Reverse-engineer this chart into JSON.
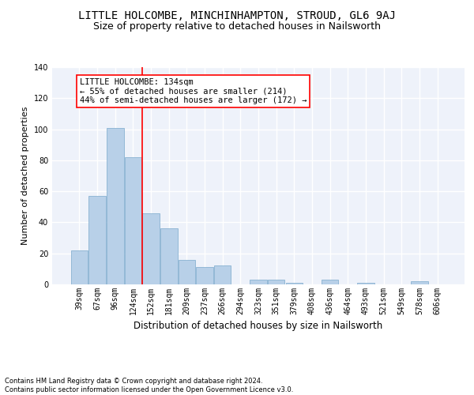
{
  "title": "LITTLE HOLCOMBE, MINCHINHAMPTON, STROUD, GL6 9AJ",
  "subtitle": "Size of property relative to detached houses in Nailsworth",
  "xlabel": "Distribution of detached houses by size in Nailsworth",
  "ylabel": "Number of detached properties",
  "categories": [
    "39sqm",
    "67sqm",
    "96sqm",
    "124sqm",
    "152sqm",
    "181sqm",
    "209sqm",
    "237sqm",
    "266sqm",
    "294sqm",
    "323sqm",
    "351sqm",
    "379sqm",
    "408sqm",
    "436sqm",
    "464sqm",
    "493sqm",
    "521sqm",
    "549sqm",
    "578sqm",
    "606sqm"
  ],
  "values": [
    22,
    57,
    101,
    82,
    46,
    36,
    16,
    11,
    12,
    0,
    3,
    3,
    1,
    0,
    3,
    0,
    1,
    0,
    0,
    2,
    0
  ],
  "bar_color": "#b8d0e8",
  "bar_edge_color": "#7aa8cc",
  "background_color": "#eef2fa",
  "grid_color": "#ffffff",
  "annotation_line1": "LITTLE HOLCOMBE: 134sqm",
  "annotation_line2": "← 55% of detached houses are smaller (214)",
  "annotation_line3": "44% of semi-detached houses are larger (172) →",
  "redline_x": 3.5,
  "ylim": [
    0,
    140
  ],
  "yticks": [
    0,
    20,
    40,
    60,
    80,
    100,
    120,
    140
  ],
  "footer": "Contains HM Land Registry data © Crown copyright and database right 2024.\nContains public sector information licensed under the Open Government Licence v3.0.",
  "title_fontsize": 10,
  "subtitle_fontsize": 9,
  "xlabel_fontsize": 8.5,
  "ylabel_fontsize": 8,
  "tick_fontsize": 7,
  "annotation_fontsize": 7.5,
  "footer_fontsize": 6
}
